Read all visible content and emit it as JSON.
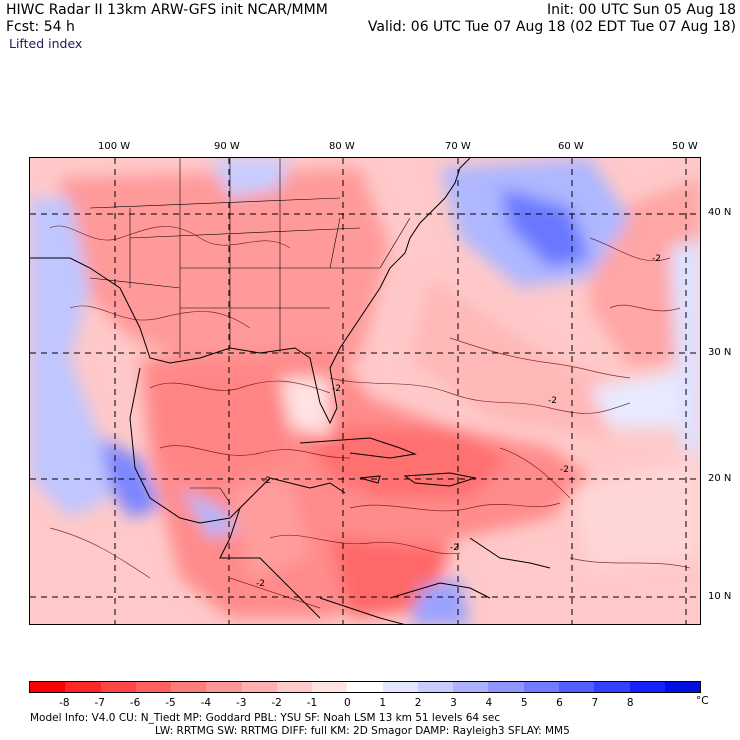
{
  "header": {
    "title_left": "HIWC Radar II 13km ARW-GFS init    NCAR/MMM",
    "forecast": "Fcst:   54 h",
    "field": "Lifted index",
    "init": "Init: 00 UTC Sun 05 Aug 18",
    "valid": "Valid: 06 UTC Tue 07 Aug 18 (02 EDT Tue 07 Aug 18)"
  },
  "map": {
    "longitude_labels": [
      "100 W",
      "90 W",
      "80 W",
      "70 W",
      "60 W",
      "50 W"
    ],
    "latitude_labels": [
      "40 N",
      "30 N",
      "20 N",
      "10 N"
    ],
    "contour_labels": [
      "-2",
      "-2",
      "-2",
      "-2",
      "-2",
      "-2",
      "-2"
    ]
  },
  "colorbar": {
    "unit": "°C",
    "ticks": [
      "-8",
      "-7",
      "-6",
      "-5",
      "-4",
      "-3",
      "-2",
      "-1",
      "0",
      "1",
      "2",
      "3",
      "4",
      "5",
      "6",
      "7",
      "8"
    ],
    "colors": [
      "#ff0000",
      "#ff2626",
      "#ff4545",
      "#ff6161",
      "#ff7c7c",
      "#ff9696",
      "#ffb0b0",
      "#ffcaca",
      "#ffe4e4",
      "#ffffff",
      "#e4e6ff",
      "#c8ccff",
      "#acb2ff",
      "#9097ff",
      "#727bff",
      "#535eff",
      "#3440ff",
      "#1422ff",
      "#0010e0"
    ]
  },
  "footer": {
    "line1": "Model Info: V4.0     CU: N_Tiedt  MP: Goddard     PBL: YSU      SF: Noah LSM     13 km    51 levels    64 sec",
    "line2": "LW: RRTMG     SW: RRTMG   DIFF: full    KM: 2D Smagor DAMP: Rayleigh3   SFLAY: MM5"
  }
}
